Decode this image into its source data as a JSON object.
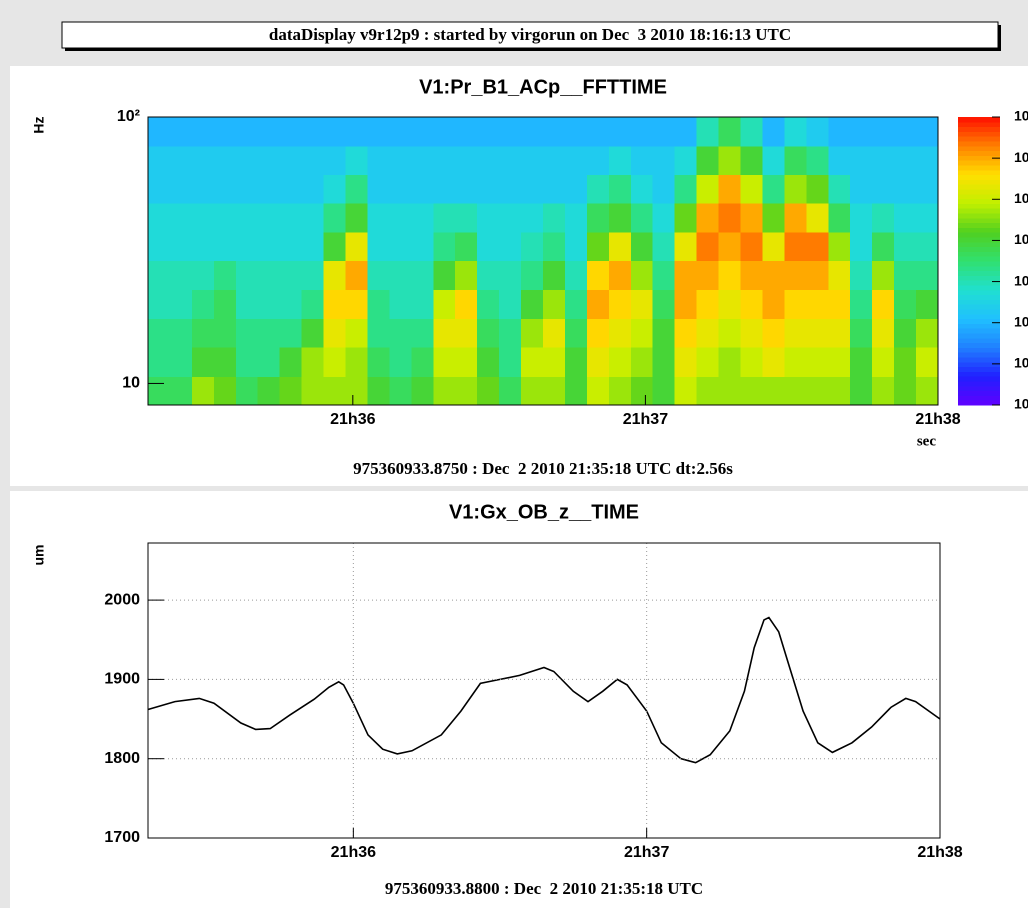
{
  "header": {
    "title": "dataDisplay v9r12p9 : started by virgorun on Dec  3 2010 18:16:13 UTC"
  },
  "chart_data": [
    {
      "type": "heatmap",
      "title": "V1:Pr_B1_ACp__FFTTIME",
      "ylabel": "Hz",
      "xlabel": "sec",
      "subtitle": "975360933.8750 : Dec  2 2010 21:35:18 UTC dt:2.56s",
      "log_y": true,
      "grid": false,
      "xlim": [
        0,
        162
      ],
      "xticks": [
        {
          "value": 42,
          "label": "21h36"
        },
        {
          "value": 102,
          "label": "21h37"
        },
        {
          "value": 162,
          "label": "21h38"
        }
      ],
      "ylim": [
        8.3,
        100
      ],
      "yticks": [
        10,
        {
          "value": 100,
          "label": "10²"
        }
      ],
      "xbins": [
        0,
        4.5,
        9,
        13.5,
        18,
        22.5,
        27,
        31.5,
        36,
        40.5,
        45,
        49.5,
        54,
        58.5,
        63,
        67.5,
        72,
        76.5,
        81,
        85.5,
        90,
        94.5,
        99,
        103.5,
        108,
        112.5,
        117,
        121.5,
        126,
        130.5,
        135,
        139.5,
        144,
        148.5,
        153,
        157.5,
        162
      ],
      "ybins": [
        8.3,
        10.6,
        13.7,
        17.5,
        22.5,
        28.9,
        37,
        47.5,
        60.9,
        78,
        100
      ],
      "zlim": [
        0,
        10.5
      ],
      "zticks": [
        {
          "value": 0,
          "label": "10"
        },
        {
          "value": 1.5,
          "label": "10"
        },
        {
          "value": 3,
          "label": "10"
        },
        {
          "value": 4.5,
          "label": "10"
        },
        {
          "value": 6,
          "label": "10"
        },
        {
          "value": 7.5,
          "label": "10"
        },
        {
          "value": 9,
          "label": "10"
        },
        {
          "value": 10.5,
          "label": "10"
        }
      ],
      "palette": [
        "#6000ff",
        "#2020ff",
        "#2080ff",
        "#20c0ff",
        "#20e0d0",
        "#30e070",
        "#50d020",
        "#c0f000",
        "#ffe000",
        "#ff8000",
        "#ff1000"
      ],
      "z": [
        [
          5.5,
          5,
          5,
          4.5,
          4.5,
          4,
          4,
          3.5,
          3.5,
          3
        ],
        [
          5.5,
          5,
          5,
          4.5,
          4.5,
          4,
          4,
          3.5,
          3.5,
          3
        ],
        [
          7,
          6,
          5.5,
          5,
          4.5,
          4,
          4,
          3.5,
          3.5,
          3
        ],
        [
          6.5,
          6,
          5.5,
          5.5,
          5,
          4,
          4,
          3.5,
          3.5,
          3
        ],
        [
          5.5,
          5,
          5,
          4.5,
          4.5,
          4,
          4,
          3.5,
          3.5,
          3
        ],
        [
          6,
          5,
          5,
          4.5,
          4.5,
          4,
          4,
          3.5,
          3.5,
          3
        ],
        [
          6.5,
          6,
          5,
          4.5,
          4.5,
          4,
          4,
          3.5,
          3.5,
          3
        ],
        [
          7,
          7,
          6,
          5,
          4.5,
          4,
          4,
          3.5,
          3.5,
          3
        ],
        [
          7,
          7.5,
          8,
          8.5,
          8,
          6,
          5,
          4,
          3.5,
          3
        ],
        [
          7,
          7,
          7.5,
          8.5,
          9,
          8,
          6,
          5,
          4,
          3
        ],
        [
          6,
          5.5,
          5,
          5,
          4.5,
          4,
          4,
          3.5,
          3.5,
          3
        ],
        [
          5.5,
          5,
          5,
          4.5,
          4.5,
          4,
          4,
          3.5,
          3.5,
          3
        ],
        [
          6,
          5.5,
          5,
          4.5,
          4.5,
          4,
          4,
          3.5,
          3.5,
          3
        ],
        [
          7,
          7.5,
          8,
          7.5,
          6,
          5,
          4.5,
          3.5,
          3.5,
          3
        ],
        [
          7,
          7.5,
          8,
          8.5,
          7,
          5.5,
          4.5,
          3.5,
          3.5,
          3
        ],
        [
          6.5,
          6,
          5.5,
          5,
          4.5,
          4,
          4,
          3.5,
          3.5,
          3
        ],
        [
          5.5,
          5,
          5,
          4.5,
          4.5,
          4,
          4,
          3.5,
          3.5,
          3
        ],
        [
          7,
          7.5,
          7,
          6,
          5,
          4.5,
          4,
          3.5,
          3.5,
          3
        ],
        [
          7,
          7.5,
          8,
          7,
          6,
          5,
          4.5,
          3.5,
          3.5,
          3
        ],
        [
          6,
          6,
          5.5,
          5,
          4.5,
          4,
          4,
          3.5,
          3.5,
          3
        ],
        [
          7.5,
          8,
          8.5,
          9,
          8.5,
          6.5,
          5.5,
          4.5,
          3.5,
          3
        ],
        [
          7,
          7.5,
          8,
          8.5,
          9,
          8,
          6,
          5,
          4,
          3
        ],
        [
          6.5,
          7,
          7.5,
          8,
          7,
          6,
          5,
          4,
          3.5,
          3
        ],
        [
          6,
          6,
          6,
          5.5,
          5,
          4.5,
          4,
          3.5,
          3.5,
          3
        ],
        [
          7.5,
          8,
          8.5,
          9,
          9,
          8,
          6.5,
          5,
          4,
          3
        ],
        [
          7,
          7.5,
          8,
          8.5,
          9,
          9.5,
          9,
          7.5,
          6,
          4.5
        ],
        [
          7,
          7,
          7.5,
          8,
          8.5,
          9,
          9.5,
          9,
          7,
          5.5
        ],
        [
          7,
          7.5,
          8,
          8.5,
          9,
          9.5,
          9,
          7.5,
          6,
          4.5
        ],
        [
          7,
          8,
          8.5,
          9,
          9,
          8,
          6.5,
          5,
          4,
          3
        ],
        [
          7,
          7.5,
          8,
          8.5,
          9,
          9.5,
          9,
          7,
          5.5,
          4
        ],
        [
          7,
          7.5,
          8,
          8.5,
          9,
          9.5,
          8,
          6.5,
          5,
          3.5
        ],
        [
          7,
          7.5,
          8,
          8.5,
          8,
          7,
          5.5,
          4.5,
          3.5,
          3
        ],
        [
          6,
          6,
          5.5,
          5,
          4.5,
          4,
          4,
          3.5,
          3.5,
          3
        ],
        [
          7,
          7.5,
          8,
          8.5,
          7,
          5.5,
          4.5,
          3.5,
          3.5,
          3
        ],
        [
          6.5,
          6.5,
          6,
          5.5,
          5,
          4.5,
          4,
          3.5,
          3.5,
          3
        ],
        [
          7,
          7.5,
          7,
          6,
          5,
          4.5,
          4,
          3.5,
          3.5,
          3
        ]
      ]
    },
    {
      "type": "line",
      "title": "V1:Gx_OB_z__TIME",
      "ylabel": "um",
      "subtitle": "975360933.8800 : Dec  2 2010 21:35:18 UTC",
      "grid": true,
      "color": "#000000",
      "xlim": [
        0,
        162
      ],
      "xticks": [
        {
          "value": 42,
          "label": "21h36"
        },
        {
          "value": 102,
          "label": "21h37"
        },
        {
          "value": 162,
          "label": "21h38"
        }
      ],
      "ylim": [
        1700,
        2072
      ],
      "yticks": [
        1700,
        1800,
        1900,
        2000
      ],
      "x": [
        0,
        5.5,
        10.5,
        13.5,
        19,
        22,
        25,
        29,
        34,
        37,
        39,
        40,
        42,
        45,
        48,
        51,
        54,
        60,
        64,
        68,
        72,
        76,
        81,
        83,
        87,
        90,
        93,
        96,
        98,
        102,
        105,
        109,
        112,
        115,
        119,
        122,
        124,
        126,
        127,
        129,
        131,
        134,
        137,
        140,
        144,
        148,
        152,
        155,
        157,
        162
      ],
      "values": [
        1862,
        1872,
        1876,
        1870,
        1845,
        1837,
        1838,
        1855,
        1875,
        1890,
        1897,
        1893,
        1870,
        1830,
        1812,
        1806,
        1810,
        1830,
        1860,
        1895,
        1900,
        1905,
        1915,
        1910,
        1885,
        1872,
        1885,
        1900,
        1893,
        1860,
        1820,
        1800,
        1795,
        1805,
        1835,
        1885,
        1940,
        1975,
        1978,
        1960,
        1920,
        1860,
        1820,
        1808,
        1820,
        1840,
        1865,
        1876,
        1872,
        1850
      ]
    }
  ]
}
